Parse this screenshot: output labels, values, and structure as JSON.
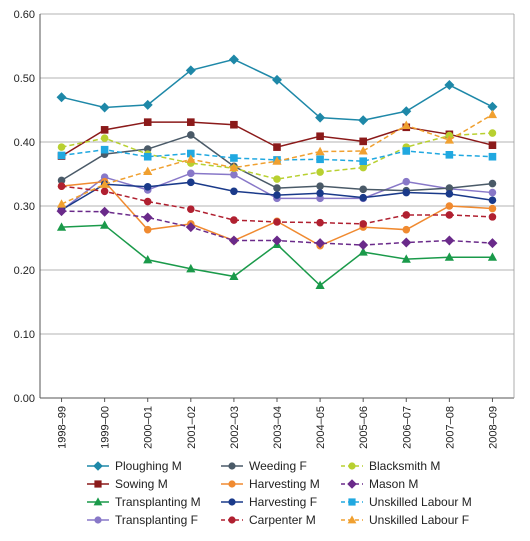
{
  "chart_data": {
    "type": "line",
    "title": "",
    "xlabel": "",
    "ylabel": "",
    "ylim": [
      0,
      0.6
    ],
    "yticks": [
      "0.00",
      "0.10",
      "0.20",
      "0.30",
      "0.40",
      "0.50",
      "0.60"
    ],
    "grid": "horizontal",
    "legend_position": "bottom",
    "x": [
      "1998–99",
      "1999–00",
      "2000–01",
      "2001–02",
      "2002–03",
      "2003–04",
      "2004–05",
      "2005–06",
      "2006–07",
      "2007–08",
      "2008–09"
    ],
    "series": [
      {
        "name": "Ploughing M",
        "color": "#1e88a8",
        "dash": false,
        "marker": "diamond",
        "values": [
          0.47,
          0.454,
          0.458,
          0.512,
          0.529,
          0.497,
          0.438,
          0.434,
          0.448,
          0.489,
          0.455
        ]
      },
      {
        "name": "Sowing M",
        "color": "#8b1a1a",
        "dash": false,
        "marker": "square",
        "values": [
          0.378,
          0.419,
          0.431,
          0.431,
          0.427,
          0.392,
          0.409,
          0.401,
          0.423,
          0.412,
          0.395
        ]
      },
      {
        "name": "Transplanting M",
        "color": "#1a9a4a",
        "dash": false,
        "marker": "triangle",
        "values": [
          0.267,
          0.27,
          0.216,
          0.202,
          0.19,
          0.24,
          0.176,
          0.228,
          0.217,
          0.22,
          0.22
        ]
      },
      {
        "name": "Transplanting F",
        "color": "#8878c8",
        "dash": false,
        "marker": "circle",
        "values": [
          0.293,
          0.345,
          0.325,
          0.351,
          0.349,
          0.312,
          0.312,
          0.312,
          0.338,
          0.327,
          0.321
        ]
      },
      {
        "name": "Weeding F",
        "color": "#4a5a68",
        "dash": false,
        "marker": "circle",
        "values": [
          0.34,
          0.381,
          0.389,
          0.411,
          0.362,
          0.328,
          0.331,
          0.326,
          0.324,
          0.328,
          0.335
        ]
      },
      {
        "name": "Harvesting M",
        "color": "#f08a30",
        "dash": false,
        "marker": "circle",
        "values": [
          0.331,
          0.338,
          0.263,
          0.272,
          0.246,
          0.276,
          0.238,
          0.267,
          0.263,
          0.3,
          0.296
        ]
      },
      {
        "name": "Harvesting F",
        "color": "#1a3a8a",
        "dash": false,
        "marker": "circle",
        "values": [
          0.294,
          0.334,
          0.33,
          0.337,
          0.323,
          0.317,
          0.32,
          0.313,
          0.321,
          0.319,
          0.309
        ]
      },
      {
        "name": "Carpenter M",
        "color": "#b02030",
        "dash": true,
        "marker": "circle",
        "values": [
          0.331,
          0.323,
          0.307,
          0.295,
          0.278,
          0.275,
          0.274,
          0.272,
          0.286,
          0.286,
          0.283
        ]
      },
      {
        "name": "Blacksmith M",
        "color": "#b8d030",
        "dash": true,
        "marker": "circle",
        "values": [
          0.392,
          0.406,
          0.381,
          0.367,
          0.359,
          0.342,
          0.353,
          0.36,
          0.392,
          0.41,
          0.414
        ]
      },
      {
        "name": "Mason M",
        "color": "#6a2a8a",
        "dash": true,
        "marker": "diamond",
        "values": [
          0.292,
          0.291,
          0.282,
          0.267,
          0.246,
          0.246,
          0.242,
          0.239,
          0.243,
          0.246,
          0.242
        ]
      },
      {
        "name": "Unskilled Labour M",
        "color": "#20a8e0",
        "dash": true,
        "marker": "square",
        "values": [
          0.379,
          0.388,
          0.377,
          0.382,
          0.375,
          0.372,
          0.373,
          0.37,
          0.386,
          0.38,
          0.377
        ]
      },
      {
        "name": "Unskilled Labour F",
        "color": "#f0a030",
        "dash": true,
        "marker": "triangle",
        "values": [
          0.303,
          0.334,
          0.354,
          0.373,
          0.36,
          0.37,
          0.385,
          0.386,
          0.426,
          0.403,
          0.443
        ]
      }
    ]
  }
}
